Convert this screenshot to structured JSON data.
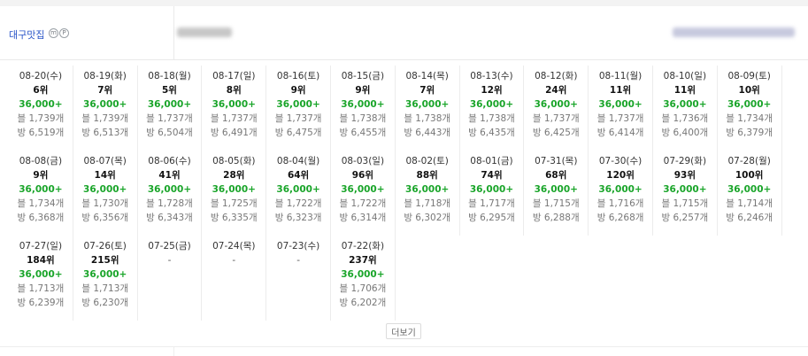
{
  "header": {
    "keyword": "대구맛집",
    "badges": [
      "m",
      "P"
    ]
  },
  "rows": [
    [
      {
        "date": "08-20(수)",
        "rank": "6위",
        "pos": "36,000+",
        "blog": "블 1,739개",
        "cafe": "방 6,519개"
      },
      {
        "date": "08-19(화)",
        "rank": "7위",
        "pos": "36,000+",
        "blog": "블 1,739개",
        "cafe": "방 6,513개"
      },
      {
        "date": "08-18(월)",
        "rank": "5위",
        "pos": "36,000+",
        "blog": "블 1,737개",
        "cafe": "방 6,504개"
      },
      {
        "date": "08-17(일)",
        "rank": "8위",
        "pos": "36,000+",
        "blog": "블 1,737개",
        "cafe": "방 6,491개"
      },
      {
        "date": "08-16(토)",
        "rank": "9위",
        "pos": "36,000+",
        "blog": "블 1,737개",
        "cafe": "방 6,475개"
      },
      {
        "date": "08-15(금)",
        "rank": "9위",
        "pos": "36,000+",
        "blog": "블 1,738개",
        "cafe": "방 6,455개"
      },
      {
        "date": "08-14(목)",
        "rank": "7위",
        "pos": "36,000+",
        "blog": "블 1,738개",
        "cafe": "방 6,443개"
      },
      {
        "date": "08-13(수)",
        "rank": "12위",
        "pos": "36,000+",
        "blog": "블 1,738개",
        "cafe": "방 6,435개"
      },
      {
        "date": "08-12(화)",
        "rank": "24위",
        "pos": "36,000+",
        "blog": "블 1,737개",
        "cafe": "방 6,425개"
      },
      {
        "date": "08-11(월)",
        "rank": "11위",
        "pos": "36,000+",
        "blog": "블 1,737개",
        "cafe": "방 6,414개"
      },
      {
        "date": "08-10(일)",
        "rank": "11위",
        "pos": "36,000+",
        "blog": "블 1,736개",
        "cafe": "방 6,400개"
      },
      {
        "date": "08-09(토)",
        "rank": "10위",
        "pos": "36,000+",
        "blog": "블 1,734개",
        "cafe": "방 6,379개"
      }
    ],
    [
      {
        "date": "08-08(금)",
        "rank": "9위",
        "pos": "36,000+",
        "blog": "블 1,734개",
        "cafe": "방 6,368개"
      },
      {
        "date": "08-07(목)",
        "rank": "14위",
        "pos": "36,000+",
        "blog": "블 1,730개",
        "cafe": "방 6,356개"
      },
      {
        "date": "08-06(수)",
        "rank": "41위",
        "pos": "36,000+",
        "blog": "블 1,728개",
        "cafe": "방 6,343개"
      },
      {
        "date": "08-05(화)",
        "rank": "28위",
        "pos": "36,000+",
        "blog": "블 1,725개",
        "cafe": "방 6,335개"
      },
      {
        "date": "08-04(월)",
        "rank": "64위",
        "pos": "36,000+",
        "blog": "블 1,722개",
        "cafe": "방 6,323개"
      },
      {
        "date": "08-03(일)",
        "rank": "96위",
        "pos": "36,000+",
        "blog": "블 1,722개",
        "cafe": "방 6,314개"
      },
      {
        "date": "08-02(토)",
        "rank": "88위",
        "pos": "36,000+",
        "blog": "블 1,718개",
        "cafe": "방 6,302개"
      },
      {
        "date": "08-01(금)",
        "rank": "74위",
        "pos": "36,000+",
        "blog": "블 1,717개",
        "cafe": "방 6,295개"
      },
      {
        "date": "07-31(목)",
        "rank": "68위",
        "pos": "36,000+",
        "blog": "블 1,715개",
        "cafe": "방 6,288개"
      },
      {
        "date": "07-30(수)",
        "rank": "120위",
        "pos": "36,000+",
        "blog": "블 1,716개",
        "cafe": "방 6,268개"
      },
      {
        "date": "07-29(화)",
        "rank": "93위",
        "pos": "36,000+",
        "blog": "블 1,715개",
        "cafe": "방 6,257개"
      },
      {
        "date": "07-28(월)",
        "rank": "100위",
        "pos": "36,000+",
        "blog": "블 1,714개",
        "cafe": "방 6,246개"
      }
    ],
    [
      {
        "date": "07-27(일)",
        "rank": "184위",
        "pos": "36,000+",
        "blog": "블 1,713개",
        "cafe": "방 6,239개"
      },
      {
        "date": "07-26(토)",
        "rank": "215위",
        "pos": "36,000+",
        "blog": "블 1,713개",
        "cafe": "방 6,230개"
      },
      {
        "date": "07-25(금)",
        "dash": "-"
      },
      {
        "date": "07-24(목)",
        "dash": "-"
      },
      {
        "date": "07-23(수)",
        "dash": "-"
      },
      {
        "date": "07-22(화)",
        "rank": "237위",
        "pos": "36,000+",
        "blog": "블 1,706개",
        "cafe": "방 6,202개"
      }
    ]
  ],
  "more_button": "더보기"
}
